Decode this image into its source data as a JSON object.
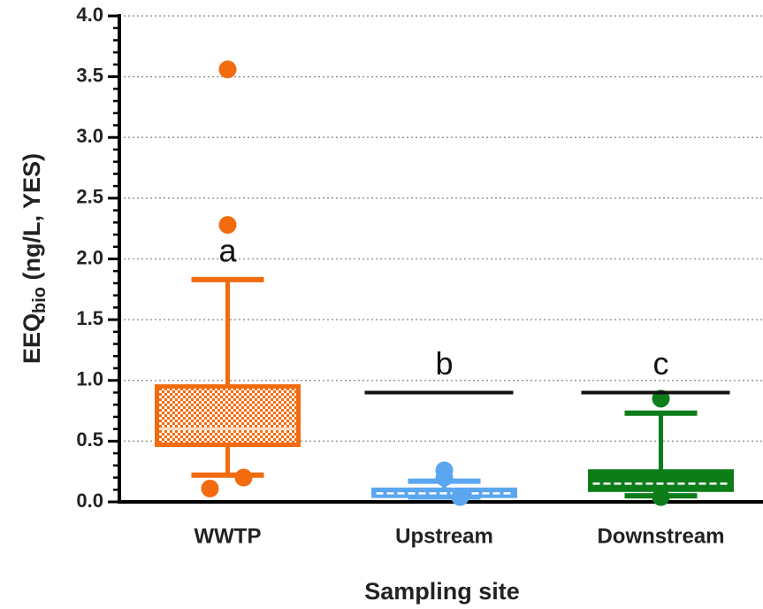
{
  "chart_data": {
    "type": "box",
    "x_label": "Sampling site",
    "y_label": {
      "main": "EEQ",
      "subscript": "bio",
      "rest": " (ng/L, YES)"
    },
    "categories": [
      "WWTP",
      "Upstream",
      "Downstream"
    ],
    "boxes": [
      {
        "color": "#f26b0f",
        "fill": "checkered",
        "whisker_low": 0.22,
        "q1": 0.47,
        "median": 0.6,
        "q3": 0.95,
        "whisker_high": 1.83,
        "outliers": [
          3.56,
          2.28,
          0.2,
          0.11
        ]
      },
      {
        "color": "#5aa6ef",
        "fill": "solid",
        "whisker_low": 0.04,
        "q1": 0.05,
        "median": 0.07,
        "q3": 0.1,
        "whisker_high": 0.17,
        "outliers": [
          0.26,
          0.2,
          0.04
        ]
      },
      {
        "color": "#0c7d19",
        "fill": "solid",
        "whisker_low": 0.05,
        "q1": 0.1,
        "median": 0.15,
        "q3": 0.25,
        "whisker_high": 0.73,
        "outliers": [
          0.85,
          0.04
        ]
      }
    ],
    "threshold_values": [
      null,
      0.9,
      0.9
    ],
    "letters": [
      "a",
      "b",
      "c"
    ],
    "ylim": [
      0,
      4
    ],
    "yticks": [
      {
        "value": 0,
        "label": "0.0"
      },
      {
        "value": 0.5,
        "label": "0.5"
      },
      {
        "value": 1,
        "label": "1.0"
      },
      {
        "value": 1.5,
        "label": "1.5"
      },
      {
        "value": 2,
        "label": "2.0"
      },
      {
        "value": 2.5,
        "label": "2.5"
      },
      {
        "value": 3,
        "label": "3.0"
      },
      {
        "value": 3.5,
        "label": "3.5"
      },
      {
        "value": 4,
        "label": "4.0"
      }
    ],
    "yminorticks": [
      0.1,
      0.2,
      0.3,
      0.4,
      0.6,
      0.7,
      0.8,
      0.9,
      1.1,
      1.2,
      1.3,
      1.4,
      1.6,
      1.7,
      1.8,
      1.9,
      2.1,
      2.2,
      2.3,
      2.4,
      2.6,
      2.7,
      2.8,
      2.9,
      3.1,
      3.2,
      3.3,
      3.4,
      3.6,
      3.7,
      3.8,
      3.9
    ],
    "grid": true
  }
}
